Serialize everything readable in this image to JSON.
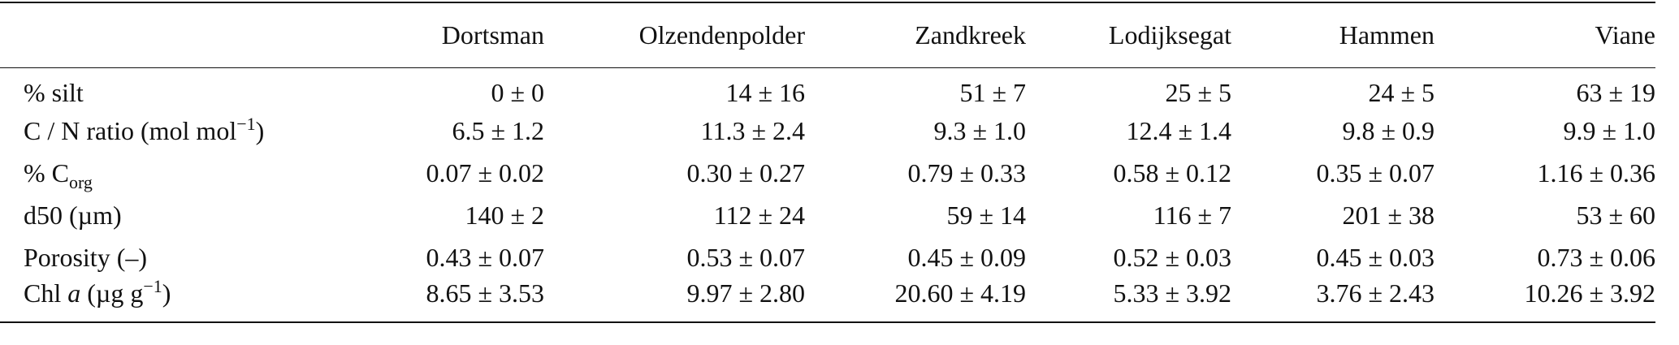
{
  "table": {
    "header": [
      "Dortsman",
      "Olzendenpolder",
      "Zandkreek",
      "Lodijksegat",
      "Hammen",
      "Viane"
    ],
    "rows": [
      {
        "label": [
          {
            "text": "% silt"
          }
        ],
        "cells": [
          "0 ± 0",
          "14 ± 16",
          "51 ± 7",
          "25 ± 5",
          "24 ± 5",
          "63 ± 19"
        ]
      },
      {
        "label": [
          {
            "text": "C / N ratio (mol mol"
          },
          {
            "sup": "−1"
          },
          {
            "text": ")"
          }
        ],
        "cells": [
          "6.5 ± 1.2",
          "11.3 ± 2.4",
          "9.3 ± 1.0",
          "12.4 ± 1.4",
          "9.8 ± 0.9",
          "9.9 ± 1.0"
        ]
      },
      {
        "label": [
          {
            "text": "% C"
          },
          {
            "sub": "org"
          }
        ],
        "cells": [
          "0.07 ± 0.02",
          "0.30 ± 0.27",
          "0.79 ± 0.33",
          "0.58 ± 0.12",
          "0.35 ± 0.07",
          "1.16 ± 0.36"
        ]
      },
      {
        "label": [
          {
            "text": "d50 (µm)"
          }
        ],
        "cells": [
          "140 ± 2",
          "112 ± 24",
          "59 ± 14",
          "116 ± 7",
          "201 ± 38",
          "53 ± 60"
        ]
      },
      {
        "label": [
          {
            "text": "Porosity (–)"
          }
        ],
        "cells": [
          "0.43 ± 0.07",
          "0.53 ± 0.07",
          "0.45 ± 0.09",
          "0.52 ± 0.03",
          "0.45 ± 0.03",
          "0.73 ± 0.06"
        ]
      },
      {
        "label": [
          {
            "text": "Chl "
          },
          {
            "italic": "a"
          },
          {
            "text": " (µg g"
          },
          {
            "sup": "−1"
          },
          {
            "text": ")"
          }
        ],
        "cells": [
          "8.65 ± 3.53",
          "9.97 ± 2.80",
          "20.60 ± 4.19",
          "5.33 ± 3.92",
          "3.76 ± 2.43",
          "10.26 ± 3.92"
        ]
      }
    ]
  }
}
